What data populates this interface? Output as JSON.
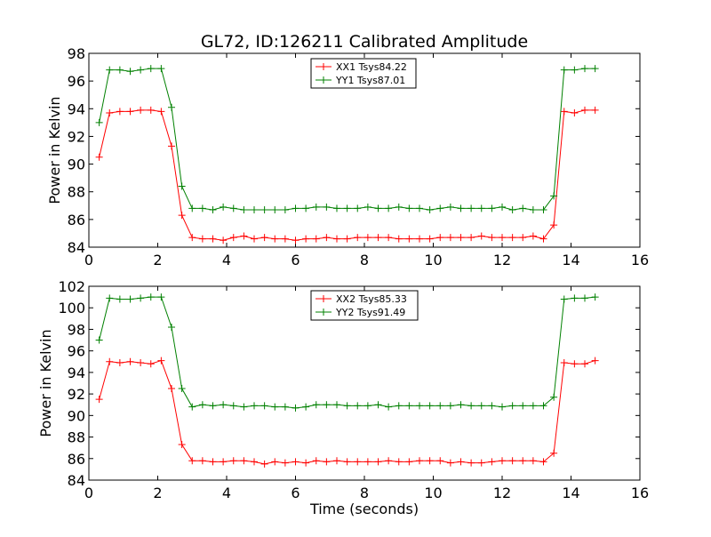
{
  "chart_data": [
    {
      "type": "line",
      "title": "GL72, ID:126211 Calibrated Amplitude",
      "xlabel": "",
      "ylabel": "Power in Kelvin",
      "xlim": [
        0,
        16
      ],
      "ylim": [
        84,
        98
      ],
      "xticks": [
        0,
        2,
        4,
        6,
        8,
        10,
        12,
        14,
        16
      ],
      "yticks": [
        84,
        86,
        88,
        90,
        92,
        94,
        96,
        98
      ],
      "legend_position": "top-center",
      "grid": false,
      "x": [
        0.3,
        0.6,
        0.9,
        1.2,
        1.5,
        1.8,
        2.1,
        2.4,
        2.7,
        3.0,
        3.3,
        3.6,
        3.9,
        4.2,
        4.5,
        4.8,
        5.1,
        5.4,
        5.7,
        6.0,
        6.3,
        6.6,
        6.9,
        7.2,
        7.5,
        7.8,
        8.1,
        8.4,
        8.7,
        9.0,
        9.3,
        9.6,
        9.9,
        10.2,
        10.5,
        10.8,
        11.1,
        11.4,
        11.7,
        12.0,
        12.3,
        12.6,
        12.9,
        13.2,
        13.5,
        13.8,
        14.1,
        14.4,
        14.7
      ],
      "series": [
        {
          "name": "XX1 Tsys84.22",
          "color": "#ff0000",
          "values": [
            90.5,
            93.7,
            93.8,
            93.8,
            93.9,
            93.9,
            93.8,
            91.3,
            86.3,
            84.7,
            84.6,
            84.6,
            84.5,
            84.7,
            84.8,
            84.6,
            84.7,
            84.6,
            84.6,
            84.5,
            84.6,
            84.6,
            84.7,
            84.6,
            84.6,
            84.7,
            84.7,
            84.7,
            84.7,
            84.6,
            84.6,
            84.6,
            84.6,
            84.7,
            84.7,
            84.7,
            84.7,
            84.8,
            84.7,
            84.7,
            84.7,
            84.7,
            84.8,
            84.6,
            85.6,
            93.8,
            93.7,
            93.9,
            93.9
          ]
        },
        {
          "name": "YY1 Tsys87.01",
          "color": "#008000",
          "values": [
            93.0,
            96.8,
            96.8,
            96.7,
            96.8,
            96.9,
            96.9,
            94.1,
            88.4,
            86.8,
            86.8,
            86.7,
            86.9,
            86.8,
            86.7,
            86.7,
            86.7,
            86.7,
            86.7,
            86.8,
            86.8,
            86.9,
            86.9,
            86.8,
            86.8,
            86.8,
            86.9,
            86.8,
            86.8,
            86.9,
            86.8,
            86.8,
            86.7,
            86.8,
            86.9,
            86.8,
            86.8,
            86.8,
            86.8,
            86.9,
            86.7,
            86.8,
            86.7,
            86.7,
            87.7,
            96.8,
            96.8,
            96.9,
            96.9
          ]
        }
      ]
    },
    {
      "type": "line",
      "title": "",
      "xlabel": "Time (seconds)",
      "ylabel": "Power in Kelvin",
      "xlim": [
        0,
        16
      ],
      "ylim": [
        84,
        102
      ],
      "xticks": [
        0,
        2,
        4,
        6,
        8,
        10,
        12,
        14,
        16
      ],
      "yticks": [
        84,
        86,
        88,
        90,
        92,
        94,
        96,
        98,
        100,
        102
      ],
      "legend_position": "top-center",
      "grid": false,
      "x": [
        0.3,
        0.6,
        0.9,
        1.2,
        1.5,
        1.8,
        2.1,
        2.4,
        2.7,
        3.0,
        3.3,
        3.6,
        3.9,
        4.2,
        4.5,
        4.8,
        5.1,
        5.4,
        5.7,
        6.0,
        6.3,
        6.6,
        6.9,
        7.2,
        7.5,
        7.8,
        8.1,
        8.4,
        8.7,
        9.0,
        9.3,
        9.6,
        9.9,
        10.2,
        10.5,
        10.8,
        11.1,
        11.4,
        11.7,
        12.0,
        12.3,
        12.6,
        12.9,
        13.2,
        13.5,
        13.8,
        14.1,
        14.4,
        14.7
      ],
      "series": [
        {
          "name": "XX2 Tsys85.33",
          "color": "#ff0000",
          "values": [
            91.5,
            95.0,
            94.9,
            95.0,
            94.9,
            94.8,
            95.1,
            92.5,
            87.3,
            85.8,
            85.8,
            85.7,
            85.7,
            85.8,
            85.8,
            85.7,
            85.5,
            85.7,
            85.6,
            85.7,
            85.6,
            85.8,
            85.7,
            85.8,
            85.7,
            85.7,
            85.7,
            85.7,
            85.8,
            85.7,
            85.7,
            85.8,
            85.8,
            85.8,
            85.6,
            85.7,
            85.6,
            85.6,
            85.7,
            85.8,
            85.8,
            85.8,
            85.8,
            85.7,
            86.5,
            94.9,
            94.8,
            94.8,
            95.1
          ]
        },
        {
          "name": "YY2 Tsys91.49",
          "color": "#008000",
          "values": [
            97.0,
            100.9,
            100.8,
            100.8,
            100.9,
            101.0,
            101.0,
            98.2,
            92.5,
            90.8,
            91.0,
            90.9,
            91.0,
            90.9,
            90.8,
            90.9,
            90.9,
            90.8,
            90.8,
            90.7,
            90.8,
            91.0,
            91.0,
            91.0,
            90.9,
            90.9,
            90.9,
            91.0,
            90.8,
            90.9,
            90.9,
            90.9,
            90.9,
            90.9,
            90.9,
            91.0,
            90.9,
            90.9,
            90.9,
            90.8,
            90.9,
            90.9,
            90.9,
            90.9,
            91.7,
            100.8,
            100.9,
            100.9,
            101.0
          ]
        }
      ]
    }
  ]
}
